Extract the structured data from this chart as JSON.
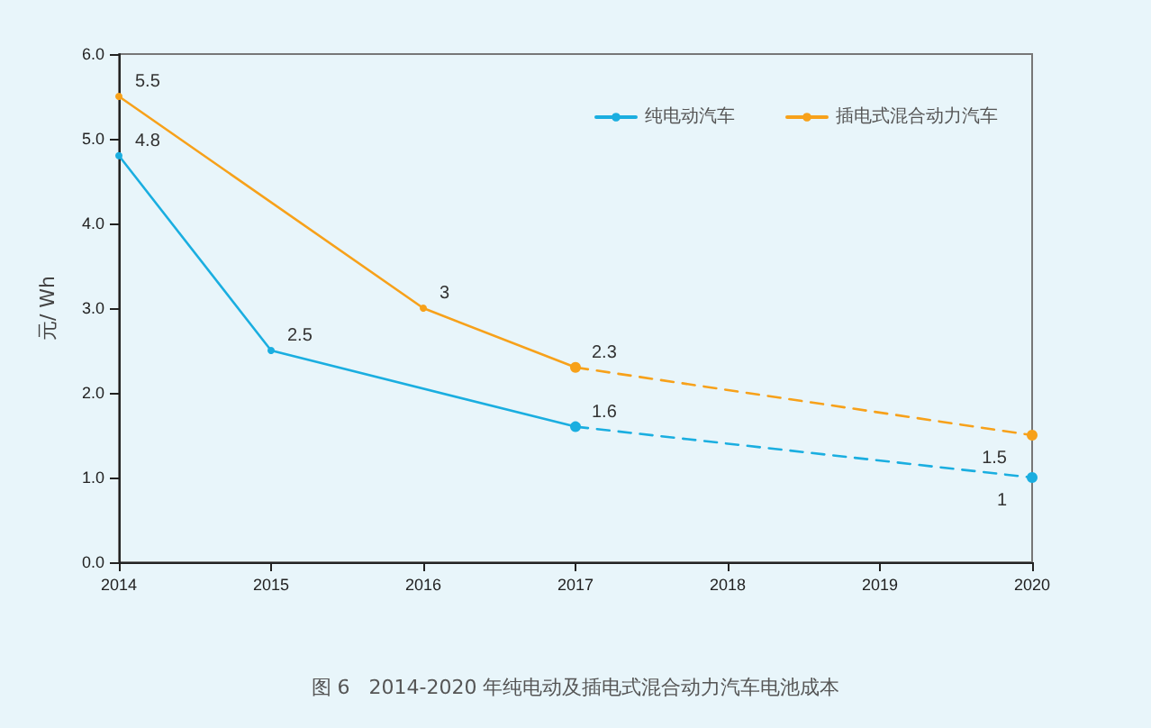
{
  "chart_data": {
    "type": "line",
    "title": "图 6   2014-2020 年纯电动及插电式混合动力汽车电池成本",
    "ylabel": "元/ Wh",
    "xlim": [
      2014,
      2020
    ],
    "xticks": [
      2014,
      2015,
      2016,
      2017,
      2018,
      2019,
      2020
    ],
    "ylim": [
      0,
      6
    ],
    "yticks": [
      {
        "value": 0,
        "label": "0.0"
      },
      {
        "value": 1,
        "label": "1.0"
      },
      {
        "value": 2,
        "label": "2.0"
      },
      {
        "value": 3,
        "label": "3.0"
      },
      {
        "value": 4,
        "label": "4.0"
      },
      {
        "value": 5,
        "label": "5.0"
      },
      {
        "value": 6,
        "label": "6.0"
      }
    ],
    "grid": false,
    "legend": "top right",
    "marker": "circle",
    "series": [
      {
        "name": "纯电动汽车",
        "color": "#1aaee0",
        "x": [
          2014,
          2015,
          2017
        ],
        "values": [
          4.8,
          2.5,
          1.6
        ],
        "value_labels": [
          "4.8",
          "2.5",
          "1.6"
        ],
        "line_style": "solid"
      },
      {
        "name": "插电式混合动力汽车",
        "color": "#f7a11a",
        "x": [
          2014,
          2016,
          2017
        ],
        "values": [
          5.5,
          3,
          2.3
        ],
        "value_labels": [
          "5.5",
          "3",
          "2.3"
        ],
        "line_style": "solid"
      },
      {
        "color": "#1aaee0",
        "x": [
          2017,
          2020
        ],
        "values": [
          1.6,
          1
        ],
        "value_labels": [
          null,
          "1"
        ],
        "line_style": "dashed"
      },
      {
        "color": "#f7a11a",
        "x": [
          2017,
          2020
        ],
        "values": [
          2.3,
          1.5
        ],
        "value_labels": [
          null,
          "1.5"
        ],
        "line_style": "dashed"
      }
    ]
  }
}
